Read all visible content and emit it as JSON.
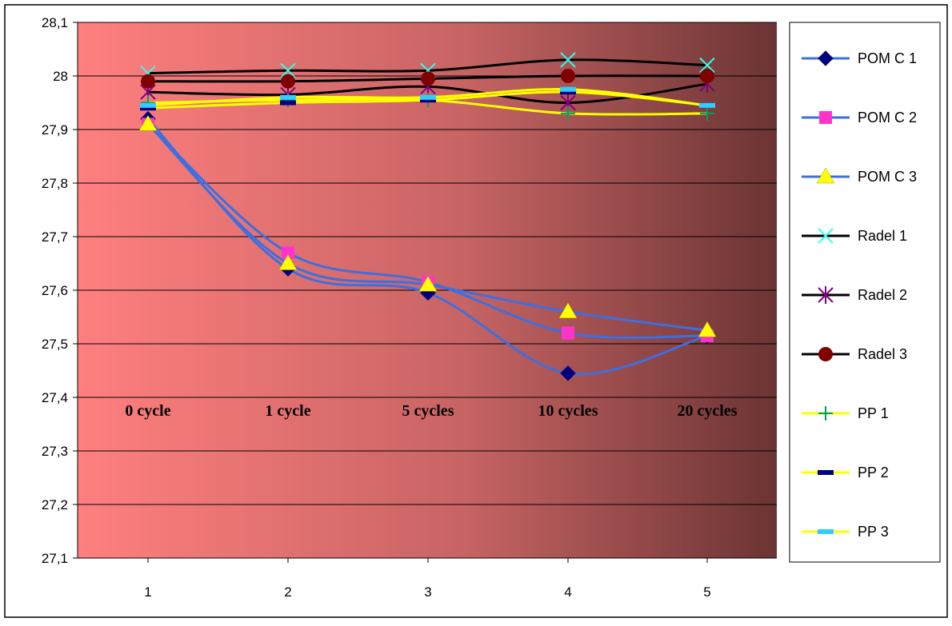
{
  "chart_data": {
    "type": "line",
    "x": [
      1,
      2,
      3,
      4,
      5
    ],
    "xticks": [
      "1",
      "2",
      "3",
      "4",
      "5"
    ],
    "ylim": [
      27.1,
      28.1
    ],
    "yticks": [
      "27,1",
      "27,2",
      "27,3",
      "27,4",
      "27,5",
      "27,6",
      "27,7",
      "27,8",
      "27,9",
      "28",
      "28,1"
    ],
    "category_labels": [
      "0 cycle",
      "1 cycle",
      "5 cycles",
      "10 cycles",
      "20 cycles"
    ],
    "grid": true,
    "legend_position": "right",
    "background": {
      "from": "#ff7f7f",
      "to": "#6b3434"
    },
    "series": [
      {
        "name": "POM C 1",
        "line_color": "#3d6fe0",
        "marker": "diamond",
        "marker_color": "#00007f",
        "values": [
          27.92,
          27.64,
          27.595,
          27.445,
          27.515
        ]
      },
      {
        "name": "POM C 2",
        "line_color": "#3d6fe0",
        "marker": "square",
        "marker_color": "#ff33cc",
        "values": [
          27.91,
          27.67,
          27.615,
          27.52,
          27.515
        ]
      },
      {
        "name": "POM C 3",
        "line_color": "#3d6fe0",
        "marker": "triangle",
        "marker_color": "#ffff00",
        "values": [
          27.91,
          27.65,
          27.61,
          27.56,
          27.525
        ]
      },
      {
        "name": "Radel 1",
        "line_color": "#000000",
        "marker": "x",
        "marker_color": "#33ffee",
        "values": [
          28.005,
          28.01,
          28.01,
          28.03,
          28.02
        ]
      },
      {
        "name": "Radel 2",
        "line_color": "#000000",
        "marker": "star",
        "marker_color": "#800080",
        "values": [
          27.97,
          27.965,
          27.98,
          27.95,
          27.985
        ]
      },
      {
        "name": "Radel 3",
        "line_color": "#000000",
        "marker": "circle",
        "marker_color": "#800000",
        "values": [
          27.99,
          27.99,
          27.995,
          28.0,
          28.0
        ]
      },
      {
        "name": "PP 1",
        "line_color": "#ffff00",
        "marker": "plus",
        "marker_color": "#00a060",
        "values": [
          27.95,
          27.955,
          27.955,
          27.93,
          27.93
        ]
      },
      {
        "name": "PP 2",
        "line_color": "#ffff00",
        "marker": "dash",
        "marker_color": "#00007f",
        "values": [
          27.94,
          27.95,
          27.955,
          27.97,
          27.945
        ]
      },
      {
        "name": "PP 3",
        "line_color": "#ffff00",
        "marker": "dash",
        "marker_color": "#33ccff",
        "values": [
          27.945,
          27.96,
          27.96,
          27.975,
          27.945
        ]
      }
    ]
  }
}
